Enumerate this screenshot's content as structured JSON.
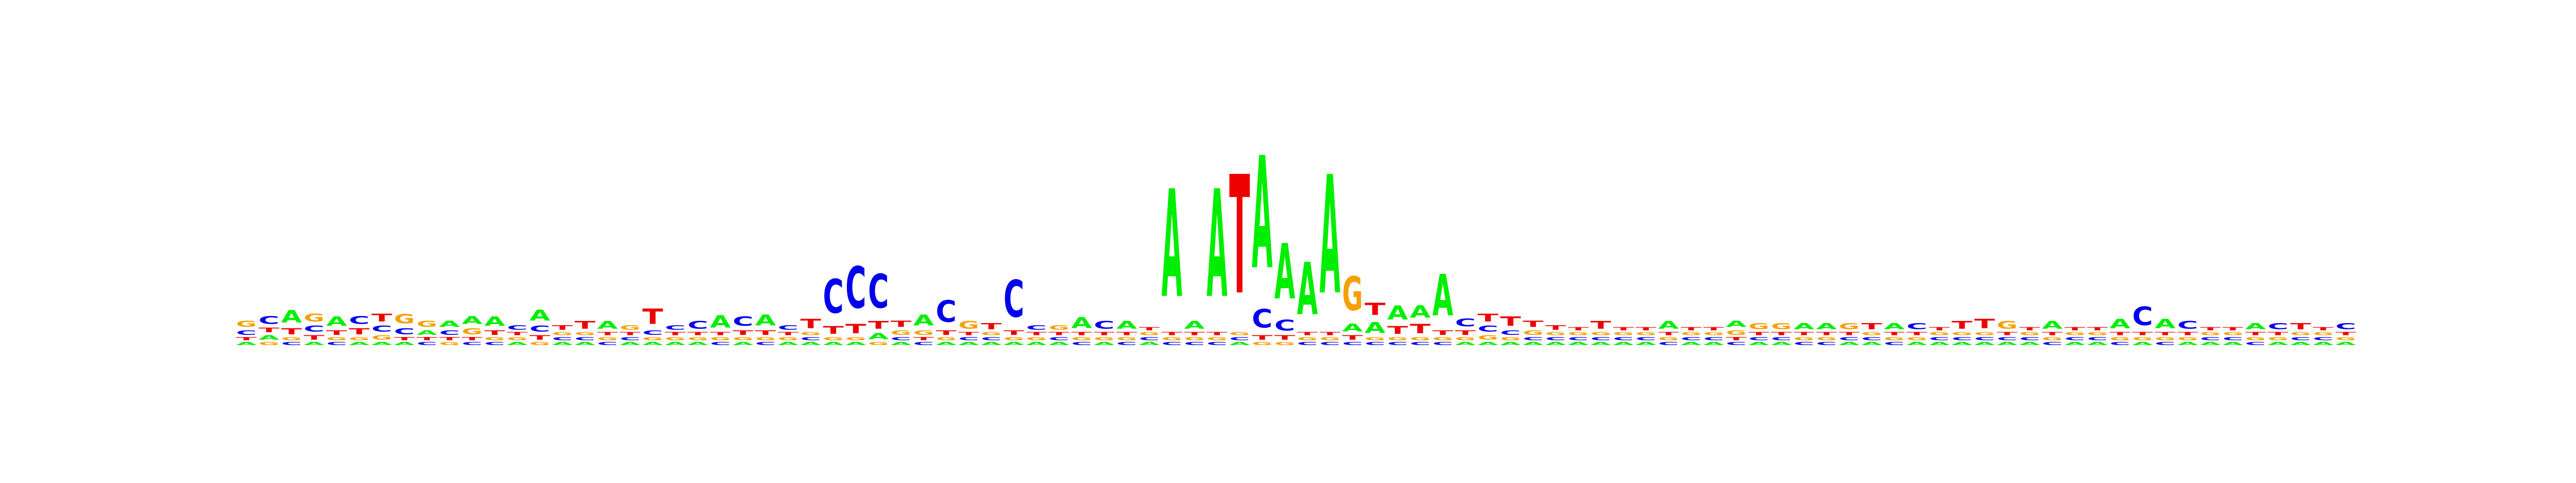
{
  "chart_data": {
    "type": "sequence-logo",
    "title": "",
    "xlabel": "",
    "ylabel": "",
    "alphabet": [
      "A",
      "C",
      "G",
      "T"
    ],
    "colors": {
      "A": "#00ee00",
      "C": "#0000ee",
      "G": "#f5a000",
      "T": "#ee0000"
    },
    "columns_bits": [
      {
        "A": 0.02,
        "C": 0.03,
        "G": 0.04,
        "T": 0.02
      },
      {
        "A": 0.03,
        "C": 0.05,
        "G": 0.02,
        "T": 0.03
      },
      {
        "A": 0.08,
        "C": 0.02,
        "G": 0.02,
        "T": 0.04
      },
      {
        "A": 0.02,
        "C": 0.04,
        "G": 0.05,
        "T": 0.03
      },
      {
        "A": 0.06,
        "C": 0.02,
        "G": 0.02,
        "T": 0.03
      },
      {
        "A": 0.02,
        "C": 0.05,
        "G": 0.02,
        "T": 0.04
      },
      {
        "A": 0.02,
        "C": 0.04,
        "G": 0.03,
        "T": 0.05
      },
      {
        "A": 0.02,
        "C": 0.04,
        "G": 0.06,
        "T": 0.02
      },
      {
        "A": 0.03,
        "C": 0.02,
        "G": 0.04,
        "T": 0.02
      },
      {
        "A": 0.04,
        "C": 0.03,
        "G": 0.02,
        "T": 0.02
      },
      {
        "A": 0.05,
        "C": 0.02,
        "G": 0.04,
        "T": 0.02
      },
      {
        "A": 0.06,
        "C": 0.02,
        "G": 0.02,
        "T": 0.03
      },
      {
        "A": 0.02,
        "C": 0.03,
        "G": 0.02,
        "T": 0.02
      },
      {
        "A": 0.07,
        "C": 0.04,
        "G": 0.02,
        "T": 0.03
      },
      {
        "A": 0.02,
        "C": 0.02,
        "G": 0.02,
        "T": 0.03
      },
      {
        "A": 0.02,
        "C": 0.02,
        "G": 0.02,
        "T": 0.05
      },
      {
        "A": 0.05,
        "C": 0.02,
        "G": 0.02,
        "T": 0.02
      },
      {
        "A": 0.02,
        "C": 0.02,
        "G": 0.03,
        "T": 0.02
      },
      {
        "A": 0.02,
        "C": 0.03,
        "G": 0.02,
        "T": 0.1
      },
      {
        "A": 0.02,
        "C": 0.03,
        "G": 0.02,
        "T": 0.02
      },
      {
        "A": 0.02,
        "C": 0.05,
        "G": 0.02,
        "T": 0.02
      },
      {
        "A": 0.08,
        "C": 0.02,
        "G": 0.02,
        "T": 0.02
      },
      {
        "A": 0.02,
        "C": 0.06,
        "G": 0.02,
        "T": 0.03
      },
      {
        "A": 0.07,
        "C": 0.02,
        "G": 0.02,
        "T": 0.03
      },
      {
        "A": 0.02,
        "C": 0.03,
        "G": 0.02,
        "T": 0.02
      },
      {
        "A": 0.02,
        "C": 0.02,
        "G": 0.02,
        "T": 0.06
      },
      {
        "A": 0.02,
        "C": 0.22,
        "G": 0.02,
        "T": 0.05
      },
      {
        "A": 0.02,
        "C": 0.27,
        "G": 0.02,
        "T": 0.06
      },
      {
        "A": 0.04,
        "C": 0.22,
        "G": 0.02,
        "T": 0.05
      },
      {
        "A": 0.02,
        "C": 0.02,
        "G": 0.03,
        "T": 0.04
      },
      {
        "A": 0.07,
        "C": 0.02,
        "G": 0.03,
        "T": 0.02
      },
      {
        "A": 0.02,
        "C": 0.14,
        "G": 0.02,
        "T": 0.03
      },
      {
        "A": 0.02,
        "C": 0.02,
        "G": 0.05,
        "T": 0.02
      },
      {
        "A": 0.02,
        "C": 0.02,
        "G": 0.02,
        "T": 0.04
      },
      {
        "A": 0.02,
        "C": 0.24,
        "G": 0.02,
        "T": 0.03
      },
      {
        "A": 0.02,
        "C": 0.03,
        "G": 0.02,
        "T": 0.02
      },
      {
        "A": 0.02,
        "C": 0.02,
        "G": 0.03,
        "T": 0.02
      },
      {
        "A": 0.07,
        "C": 0.02,
        "G": 0.02,
        "T": 0.02
      },
      {
        "A": 0.02,
        "C": 0.05,
        "G": 0.02,
        "T": 0.02
      },
      {
        "A": 0.05,
        "C": 0.02,
        "G": 0.02,
        "T": 0.02
      },
      {
        "A": 0.02,
        "C": 0.02,
        "G": 0.02,
        "T": 0.02
      },
      {
        "A": 0.7,
        "C": 0.02,
        "G": 0.02,
        "T": 0.02
      },
      {
        "A": 0.05,
        "C": 0.02,
        "G": 0.02,
        "T": 0.02
      },
      {
        "A": 0.7,
        "C": 0.02,
        "G": 0.02,
        "T": 0.02
      },
      {
        "A": 0.02,
        "C": 0.02,
        "G": 0.02,
        "T": 0.77
      },
      {
        "A": 0.73,
        "C": 0.12,
        "G": 0.02,
        "T": 0.03
      },
      {
        "A": 0.36,
        "C": 0.07,
        "G": 0.02,
        "T": 0.03
      },
      {
        "A": 0.34,
        "C": 0.02,
        "G": 0.02,
        "T": 0.02
      },
      {
        "A": 0.77,
        "C": 0.02,
        "G": 0.02,
        "T": 0.02
      },
      {
        "A": 0.05,
        "C": 0.02,
        "G": 0.22,
        "T": 0.03
      },
      {
        "A": 0.07,
        "C": 0.02,
        "G": 0.02,
        "T": 0.08
      },
      {
        "A": 0.09,
        "C": 0.02,
        "G": 0.02,
        "T": 0.05
      },
      {
        "A": 0.08,
        "C": 0.02,
        "G": 0.02,
        "T": 0.06
      },
      {
        "A": 0.27,
        "C": 0.02,
        "G": 0.02,
        "T": 0.03
      },
      {
        "A": 0.02,
        "C": 0.05,
        "G": 0.02,
        "T": 0.03
      },
      {
        "A": 0.02,
        "C": 0.04,
        "G": 0.03,
        "T": 0.05
      },
      {
        "A": 0.02,
        "C": 0.03,
        "G": 0.02,
        "T": 0.06
      },
      {
        "A": 0.02,
        "C": 0.02,
        "G": 0.03,
        "T": 0.04
      },
      {
        "A": 0.02,
        "C": 0.02,
        "G": 0.02,
        "T": 0.03
      },
      {
        "A": 0.02,
        "C": 0.02,
        "G": 0.02,
        "T": 0.02
      },
      {
        "A": 0.02,
        "C": 0.02,
        "G": 0.02,
        "T": 0.05
      },
      {
        "A": 0.02,
        "C": 0.02,
        "G": 0.02,
        "T": 0.02
      },
      {
        "A": 0.02,
        "C": 0.02,
        "G": 0.02,
        "T": 0.02
      },
      {
        "A": 0.05,
        "C": 0.02,
        "G": 0.02,
        "T": 0.02
      },
      {
        "A": 0.02,
        "C": 0.02,
        "G": 0.02,
        "T": 0.02
      },
      {
        "A": 0.02,
        "C": 0.02,
        "G": 0.02,
        "T": 0.02
      },
      {
        "A": 0.04,
        "C": 0.02,
        "G": 0.03,
        "T": 0.02
      },
      {
        "A": 0.02,
        "C": 0.02,
        "G": 0.04,
        "T": 0.02
      },
      {
        "A": 0.02,
        "C": 0.02,
        "G": 0.04,
        "T": 0.02
      },
      {
        "A": 0.04,
        "C": 0.02,
        "G": 0.02,
        "T": 0.02
      },
      {
        "A": 0.04,
        "C": 0.02,
        "G": 0.02,
        "T": 0.02
      },
      {
        "A": 0.02,
        "C": 0.02,
        "G": 0.04,
        "T": 0.02
      },
      {
        "A": 0.02,
        "C": 0.02,
        "G": 0.02,
        "T": 0.04
      },
      {
        "A": 0.04,
        "C": 0.02,
        "G": 0.02,
        "T": 0.02
      },
      {
        "A": 0.02,
        "C": 0.04,
        "G": 0.02,
        "T": 0.02
      },
      {
        "A": 0.02,
        "C": 0.02,
        "G": 0.02,
        "T": 0.02
      },
      {
        "A": 0.02,
        "C": 0.02,
        "G": 0.02,
        "T": 0.05
      },
      {
        "A": 0.02,
        "C": 0.02,
        "G": 0.02,
        "T": 0.06
      },
      {
        "A": 0.02,
        "C": 0.02,
        "G": 0.05,
        "T": 0.02
      },
      {
        "A": 0.02,
        "C": 0.02,
        "G": 0.02,
        "T": 0.02
      },
      {
        "A": 0.05,
        "C": 0.02,
        "G": 0.02,
        "T": 0.02
      },
      {
        "A": 0.02,
        "C": 0.02,
        "G": 0.02,
        "T": 0.02
      },
      {
        "A": 0.02,
        "C": 0.02,
        "G": 0.02,
        "T": 0.02
      },
      {
        "A": 0.06,
        "C": 0.02,
        "G": 0.02,
        "T": 0.02
      },
      {
        "A": 0.02,
        "C": 0.12,
        "G": 0.02,
        "T": 0.02
      },
      {
        "A": 0.06,
        "C": 0.02,
        "G": 0.02,
        "T": 0.02
      },
      {
        "A": 0.02,
        "C": 0.05,
        "G": 0.02,
        "T": 0.02
      },
      {
        "A": 0.02,
        "C": 0.02,
        "G": 0.02,
        "T": 0.02
      },
      {
        "A": 0.02,
        "C": 0.02,
        "G": 0.02,
        "T": 0.02
      },
      {
        "A": 0.04,
        "C": 0.02,
        "G": 0.02,
        "T": 0.02
      },
      {
        "A": 0.02,
        "C": 0.04,
        "G": 0.02,
        "T": 0.02
      },
      {
        "A": 0.02,
        "C": 0.02,
        "G": 0.02,
        "T": 0.04
      },
      {
        "A": 0.02,
        "C": 0.02,
        "G": 0.02,
        "T": 0.02
      },
      {
        "A": 0.02,
        "C": 0.04,
        "G": 0.02,
        "T": 0.02
      }
    ]
  }
}
